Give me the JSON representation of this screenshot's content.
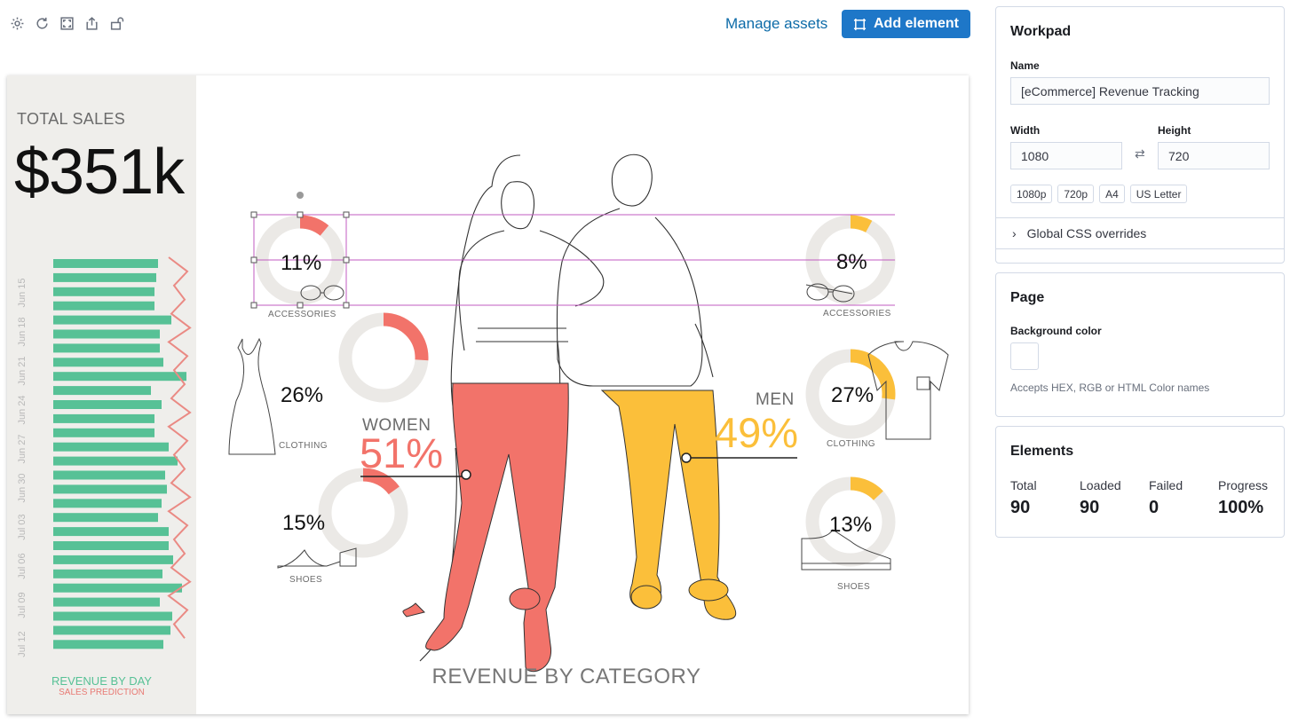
{
  "toolbar": {
    "icons": [
      "gear-icon",
      "refresh-icon",
      "fullscreen-icon",
      "share-icon",
      "unlock-icon"
    ],
    "manage_assets": "Manage assets",
    "add_element": "Add element"
  },
  "canvas": {
    "total_sales_label": "TOTAL SALES",
    "total_sales_value": "$351k",
    "revenue_by_day": "REVENUE BY DAY",
    "sales_prediction": "SALES PREDICTION",
    "date_labels": [
      "Jun 15",
      "Jun 18",
      "Jun 21",
      "Jun 24",
      "Jun 27",
      "Jun 30",
      "Jul 03",
      "Jul 06",
      "Jul 09",
      "Jul 12"
    ],
    "revenue_by_category": "REVENUE BY CATEGORY",
    "women": {
      "label": "WOMEN",
      "value": "51%",
      "color": "#f2736a"
    },
    "men": {
      "label": "MEN",
      "value": "49%",
      "color": "#fbbf3a"
    },
    "women_accessories": {
      "value": "11%",
      "label": "ACCESSORIES",
      "fraction": 0.11
    },
    "women_clothing": {
      "value": "26%",
      "label": "CLOTHING",
      "fraction": 0.26
    },
    "women_shoes": {
      "value": "15%",
      "label": "SHOES",
      "fraction": 0.15
    },
    "men_accessories": {
      "value": "8%",
      "label": "ACCESSORIES",
      "fraction": 0.08
    },
    "men_clothing": {
      "value": "27%",
      "label": "CLOTHING",
      "fraction": 0.27
    },
    "men_shoes": {
      "value": "13%",
      "label": "SHOES",
      "fraction": 0.13
    }
  },
  "sidebar": {
    "workpad": {
      "title": "Workpad",
      "name_label": "Name",
      "name_value": "[eCommerce] Revenue Tracking",
      "width_label": "Width",
      "width_value": "1080",
      "height_label": "Height",
      "height_value": "720",
      "presets": [
        "1080p",
        "720p",
        "A4",
        "US Letter"
      ],
      "css_overrides": "Global CSS overrides"
    },
    "page": {
      "title": "Page",
      "bg_label": "Background color",
      "bg_help": "Accepts HEX, RGB or HTML Color names"
    },
    "elements": {
      "title": "Elements",
      "stats": [
        {
          "label": "Total",
          "value": "90"
        },
        {
          "label": "Loaded",
          "value": "90"
        },
        {
          "label": "Failed",
          "value": "0"
        },
        {
          "label": "Progress",
          "value": "100%"
        }
      ]
    }
  }
}
